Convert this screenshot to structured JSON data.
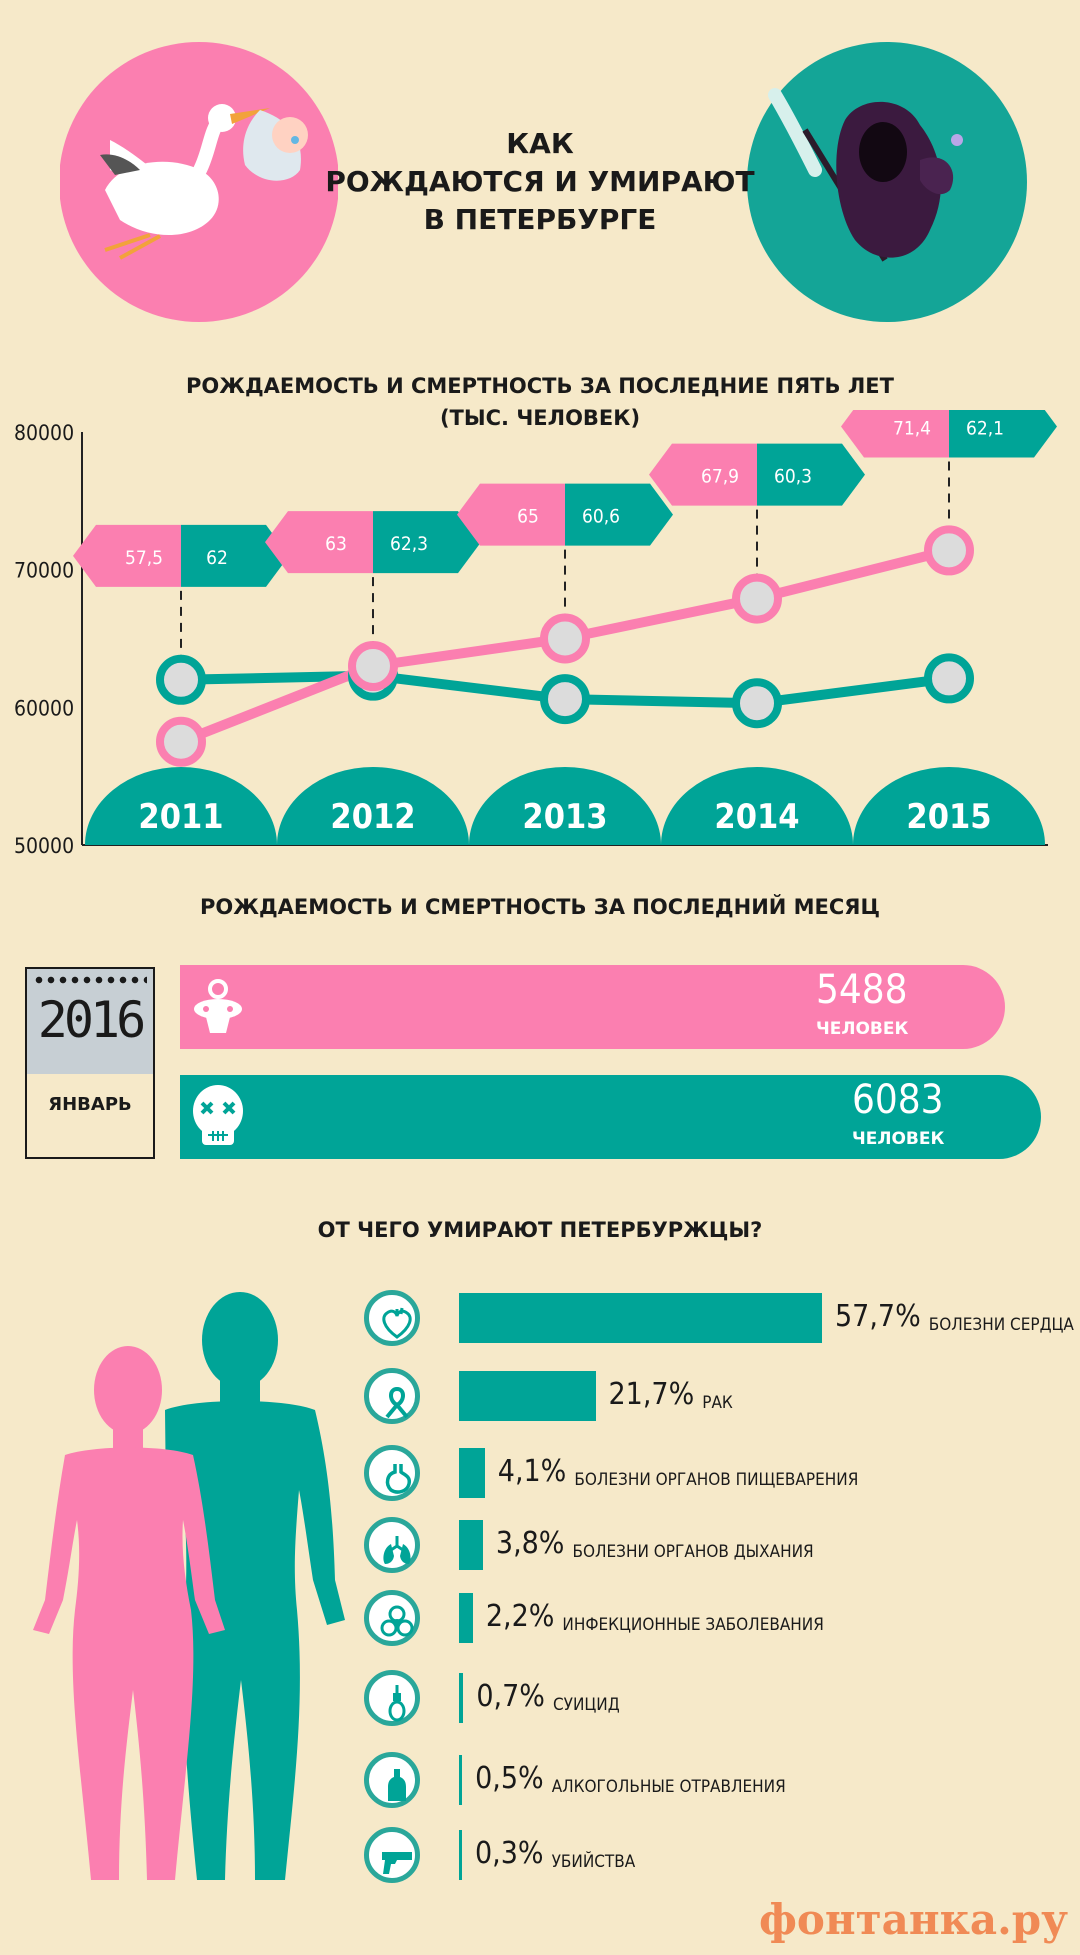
{
  "header": {
    "title_lines": [
      "КАК",
      "РОЖДАЮТСЯ И УМИРАЮТ",
      "В ПЕТЕРБУРГЕ"
    ]
  },
  "yearly": {
    "heading_lines": [
      "РОЖДАЕМОСТЬ И СМЕРТНОСТЬ ЗА ПОСЛЕДНИЕ ПЯТЬ ЛЕТ",
      "(ТЫС. ЧЕЛОВЕК)"
    ]
  },
  "monthly": {
    "heading": "РОЖДАЕМОСТЬ И СМЕРТНОСТЬ ЗА ПОСЛЕДНИЙ МЕСЯЦ",
    "year": "2016",
    "month": "ЯНВАРЬ",
    "births": {
      "value": "5488",
      "unit": "ЧЕЛОВЕК"
    },
    "deaths": {
      "value": "6083",
      "unit": "ЧЕЛОВЕК"
    }
  },
  "causes": {
    "heading": "ОТ ЧЕГО УМИРАЮТ ПЕТЕРБУРЖЦЫ?",
    "items": [
      {
        "pct_label": "57,7%",
        "name": "БОЛЕЗНИ СЕРДЦА",
        "icon": "heart-icon",
        "value": 57.7
      },
      {
        "pct_label": "21,7%",
        "name": "РАК",
        "icon": "ribbon-icon",
        "value": 21.7
      },
      {
        "pct_label": "4,1%",
        "name": "БОЛЕЗНИ ОРГАНОВ ПИЩЕВАРЕНИЯ",
        "icon": "stomach-icon",
        "value": 4.1
      },
      {
        "pct_label": "3,8%",
        "name": "БОЛЕЗНИ ОРГАНОВ ДЫХАНИЯ",
        "icon": "lungs-icon",
        "value": 3.8
      },
      {
        "pct_label": "2,2%",
        "name": "ИНФЕКЦИОННЫЕ ЗАБОЛЕВАНИЯ",
        "icon": "biohazard-icon",
        "value": 2.2
      },
      {
        "pct_label": "0,7%",
        "name": "СУИЦИД",
        "icon": "noose-icon",
        "value": 0.7
      },
      {
        "pct_label": "0,5%",
        "name": "АЛКОГОЛЬНЫЕ ОТРАВЛЕНИЯ",
        "icon": "bottle-icon",
        "value": 0.5
      },
      {
        "pct_label": "0,3%",
        "name": "УБИЙСТВА",
        "icon": "pistol-icon",
        "value": 0.3
      }
    ]
  },
  "footer": {
    "logo": "фонтанка.ру"
  },
  "colors": {
    "pink": "#fb7fb0",
    "teal": "#00a497",
    "background": "#f6e9c9"
  },
  "chart_data": [
    {
      "type": "line",
      "title": "РОЖДАЕМОСТЬ И СМЕРТНОСТЬ ЗА ПОСЛЕДНИЕ ПЯТЬ ЛЕТ",
      "subtitle": "(ТЫС. ЧЕЛОВЕК)",
      "x": [
        "2011",
        "2012",
        "2013",
        "2014",
        "2015"
      ],
      "series": [
        {
          "color": "#fb7fb0",
          "values": [
            57.5,
            63,
            65,
            67.9,
            71.4
          ],
          "labels": [
            "57,5",
            "63",
            "65",
            "67,9",
            "71,4"
          ]
        },
        {
          "color": "#00a497",
          "values": [
            62,
            62.3,
            60.6,
            60.3,
            62.1
          ],
          "labels": [
            "62",
            "62,3",
            "60,6",
            "60,3",
            "62,1"
          ]
        }
      ],
      "yticks": [
        "80000",
        "70000",
        "60000",
        "50000"
      ],
      "ylim": [
        50,
        80
      ]
    },
    {
      "type": "bar",
      "title": "ОТ ЧЕГО УМИРАЮТ ПЕТЕРБУРЖЦЫ?",
      "categories": [
        "БОЛЕЗНИ СЕРДЦА",
        "РАК",
        "БОЛЕЗНИ ОРГАНОВ ПИЩЕВАРЕНИЯ",
        "БОЛЕЗНИ ОРГАНОВ ДЫХАНИЯ",
        "ИНФЕКЦИОННЫЕ ЗАБОЛЕВАНИЯ",
        "СУИЦИД",
        "АЛКОГОЛЬНЫЕ ОТРАВЛЕНИЯ",
        "УБИЙСТВА"
      ],
      "values": [
        57.7,
        21.7,
        4.1,
        3.8,
        2.2,
        0.7,
        0.5,
        0.3
      ]
    }
  ]
}
